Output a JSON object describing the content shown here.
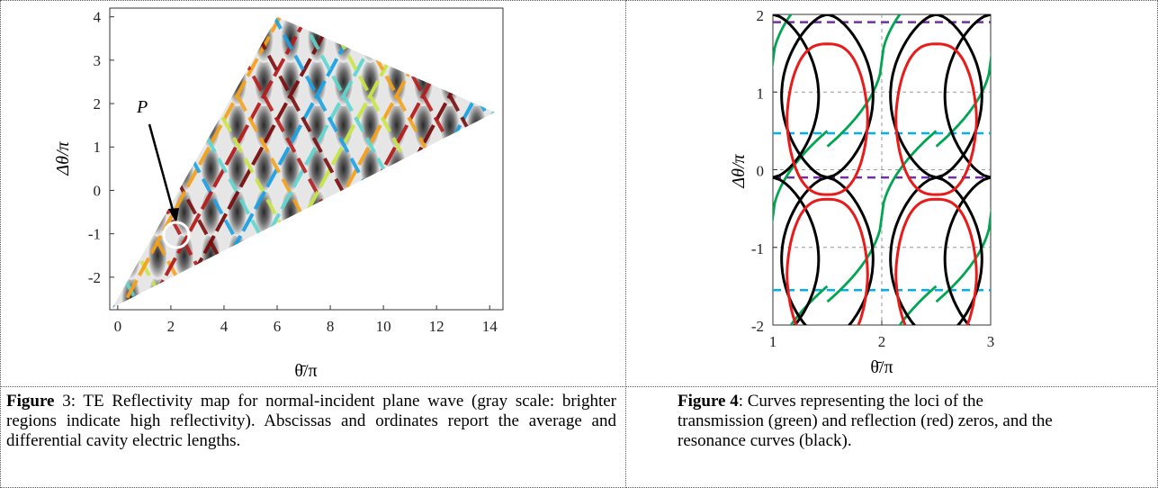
{
  "fig3": {
    "xticks": [
      "0",
      "2",
      "4",
      "6",
      "8",
      "10",
      "12",
      "14"
    ],
    "yticks": [
      "4",
      "3",
      "2",
      "1",
      "0",
      "-1",
      "-2"
    ],
    "xlabel": "θ̄/π",
    "ylabel": "Δθ/π",
    "annotation": "P",
    "chart_data": {
      "type": "heatmap",
      "title": "",
      "xlabel": "θ̄/π",
      "ylabel": "Δθ/π",
      "xlim": [
        -0.3,
        14.5
      ],
      "ylim": [
        -2.75,
        4.2
      ],
      "x_ticks": [
        0,
        2,
        4,
        6,
        8,
        10,
        12,
        14
      ],
      "y_ticks": [
        -2,
        -1,
        0,
        1,
        2,
        3,
        4
      ],
      "region_vertices": [
        [
          -0.2,
          -2.7
        ],
        [
          6,
          4
        ],
        [
          14.2,
          1.8
        ]
      ],
      "marked_point": {
        "label": "P",
        "x": 2.1,
        "y": -1.0
      },
      "colormap": "gray scale (brighter = higher reflectivity) with colored resonance traces"
    }
  },
  "fig4": {
    "xticks": [
      "1",
      "2",
      "3"
    ],
    "yticks": [
      "2",
      "1",
      "0",
      "-1",
      "-2"
    ],
    "xlabel": "θ̄/π",
    "ylabel": "Δθ/π",
    "chart_data": {
      "type": "line",
      "title": "",
      "xlabel": "θ̄/π",
      "ylabel": "Δθ/π",
      "xlim": [
        1,
        3
      ],
      "ylim": [
        -2,
        2
      ],
      "x_ticks": [
        1,
        2,
        3
      ],
      "y_ticks": [
        -2,
        -1,
        0,
        1,
        2
      ],
      "grid": true,
      "series": [
        {
          "color": "#00a651",
          "kind": "transmission zeros"
        },
        {
          "color": "#e81a1a",
          "kind": "reflection zeros",
          "centers": [
            [
              1.5,
              0.65
            ],
            [
              2.5,
              0.65
            ],
            [
              1.5,
              -1.35
            ],
            [
              2.5,
              -1.35
            ]
          ],
          "half_width_x": 0.37,
          "half_height_y": 0.97
        },
        {
          "color": "#000000",
          "kind": "resonance curves",
          "crossings": [
            [
              1.5,
              2
            ],
            [
              2.5,
              2
            ],
            [
              1.5,
              -0.1
            ],
            [
              2.5,
              -0.1
            ],
            [
              1.5,
              -2
            ],
            [
              2.5,
              -2
            ]
          ]
        },
        {
          "color": "#7030a0",
          "style": "dashed",
          "y": [
            1.9,
            -0.1
          ]
        },
        {
          "color": "#00b0f0",
          "style": "dashed",
          "y": [
            0.47,
            -1.55
          ]
        }
      ]
    }
  },
  "captions": {
    "fig3_label": "Figure",
    "fig3_text": " 3: TE Reflectivity map for normal-incident plane wave (gray scale: brighter regions indicate high reflectivity). Abscissas and ordinates report the average and differential cavity electric lengths.",
    "fig4_label": "Figure 4",
    "fig4_text": ": Curves representing the loci of the transmission (green) and reflection (red) zeros, and the resonance curves (black)."
  }
}
